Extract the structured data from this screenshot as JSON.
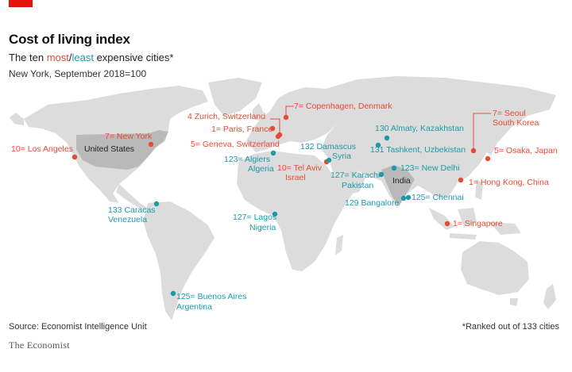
{
  "colors": {
    "accent": "#e3120b",
    "most": "#e64b35",
    "least": "#1b9aaa",
    "land": "#dcdcdc",
    "highlight": "#b9b9b9",
    "text": "#222222"
  },
  "header": {
    "title": "Cost of living index",
    "subtitle_pre": "The ten ",
    "most": "most",
    "slash": "/",
    "least": "least",
    "subtitle_post": " expensive cities*",
    "note": "New York, September 2018=100"
  },
  "countries": [
    "United States",
    "India"
  ],
  "cities": [
    {
      "id": "los-angeles",
      "rank": "10=",
      "city": "Los Angeles",
      "country": "",
      "type": "most"
    },
    {
      "id": "new-york",
      "rank": "7=",
      "city": "New York",
      "country": "",
      "type": "most"
    },
    {
      "id": "zurich",
      "rank": "4",
      "city": "Zurich,",
      "country": "Switzerland",
      "type": "most"
    },
    {
      "id": "paris",
      "rank": "1=",
      "city": "Paris,",
      "country": "France",
      "type": "most"
    },
    {
      "id": "geneva",
      "rank": "5=",
      "city": "Geneva,",
      "country": "Switzerland",
      "type": "most"
    },
    {
      "id": "copenhagen",
      "rank": "7=",
      "city": "Copenhagen,",
      "country": "Denmark",
      "type": "most"
    },
    {
      "id": "tel-aviv",
      "rank": "10=",
      "city": "Tel Aviv",
      "country": "Israel",
      "type": "most"
    },
    {
      "id": "seoul",
      "rank": "7=",
      "city": "Seoul",
      "country": "South Korea",
      "type": "most"
    },
    {
      "id": "osaka",
      "rank": "5=",
      "city": "Osaka,",
      "country": "Japan",
      "type": "most"
    },
    {
      "id": "hong-kong",
      "rank": "1=",
      "city": "Hong Kong,",
      "country": "China",
      "type": "most"
    },
    {
      "id": "singapore",
      "rank": "1=",
      "city": "Singapore",
      "country": "",
      "type": "most"
    },
    {
      "id": "caracas",
      "rank": "133",
      "city": "Caracas",
      "country": "Venezuela",
      "type": "least"
    },
    {
      "id": "algiers",
      "rank": "123=",
      "city": "Algiers",
      "country": "Algeria",
      "type": "least"
    },
    {
      "id": "lagos",
      "rank": "127=",
      "city": "Lagos",
      "country": "Nigeria",
      "type": "least"
    },
    {
      "id": "buenos-aires",
      "rank": "125=",
      "city": "Buenos Aires",
      "country": "Argentina",
      "type": "least"
    },
    {
      "id": "damascus",
      "rank": "132",
      "city": "Damascus",
      "country": "Syria",
      "type": "least"
    },
    {
      "id": "almaty",
      "rank": "130",
      "city": "Almaty,",
      "country": "Kazakhstan",
      "type": "least"
    },
    {
      "id": "tashkent",
      "rank": "131",
      "city": "Tashkent,",
      "country": "Uzbekistan",
      "type": "least"
    },
    {
      "id": "karachi",
      "rank": "127=",
      "city": "Karachi",
      "country": "Pakistan",
      "type": "least"
    },
    {
      "id": "new-delhi",
      "rank": "123=",
      "city": "New Delhi",
      "country": "",
      "type": "least"
    },
    {
      "id": "bangalore",
      "rank": "129",
      "city": "Bangalore",
      "country": "",
      "type": "least"
    },
    {
      "id": "chennai",
      "rank": "125=",
      "city": "Chennai",
      "country": "",
      "type": "least"
    }
  ],
  "footer": {
    "source": "Source: Economist Intelligence Unit",
    "ranked_note": "*Ranked out of 133 cities",
    "publisher": "The Economist"
  }
}
